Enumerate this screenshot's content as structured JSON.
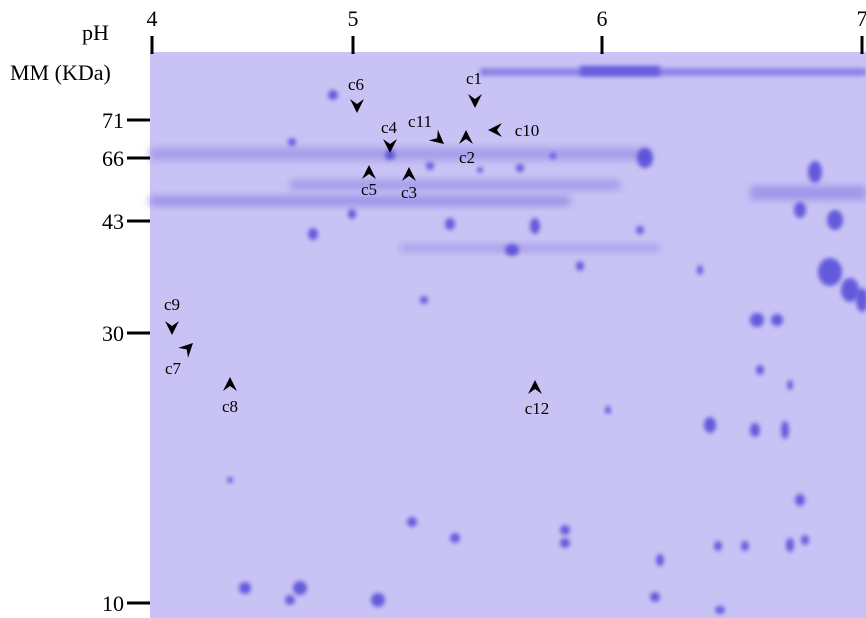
{
  "axes": {
    "ph_label": "pH",
    "ph_ticks": [
      4,
      5,
      6,
      7
    ],
    "mm_label": "MM (KDa)",
    "mm_ticks": [
      71,
      66,
      43,
      30,
      10
    ]
  },
  "spots": [
    {
      "label": "c1"
    },
    {
      "label": "c2"
    },
    {
      "label": "c3"
    },
    {
      "label": "c4"
    },
    {
      "label": "c5"
    },
    {
      "label": "c6"
    },
    {
      "label": "c7"
    },
    {
      "label": "c8"
    },
    {
      "label": "c9"
    },
    {
      "label": "c10"
    },
    {
      "label": "c11"
    },
    {
      "label": "c12"
    }
  ]
}
